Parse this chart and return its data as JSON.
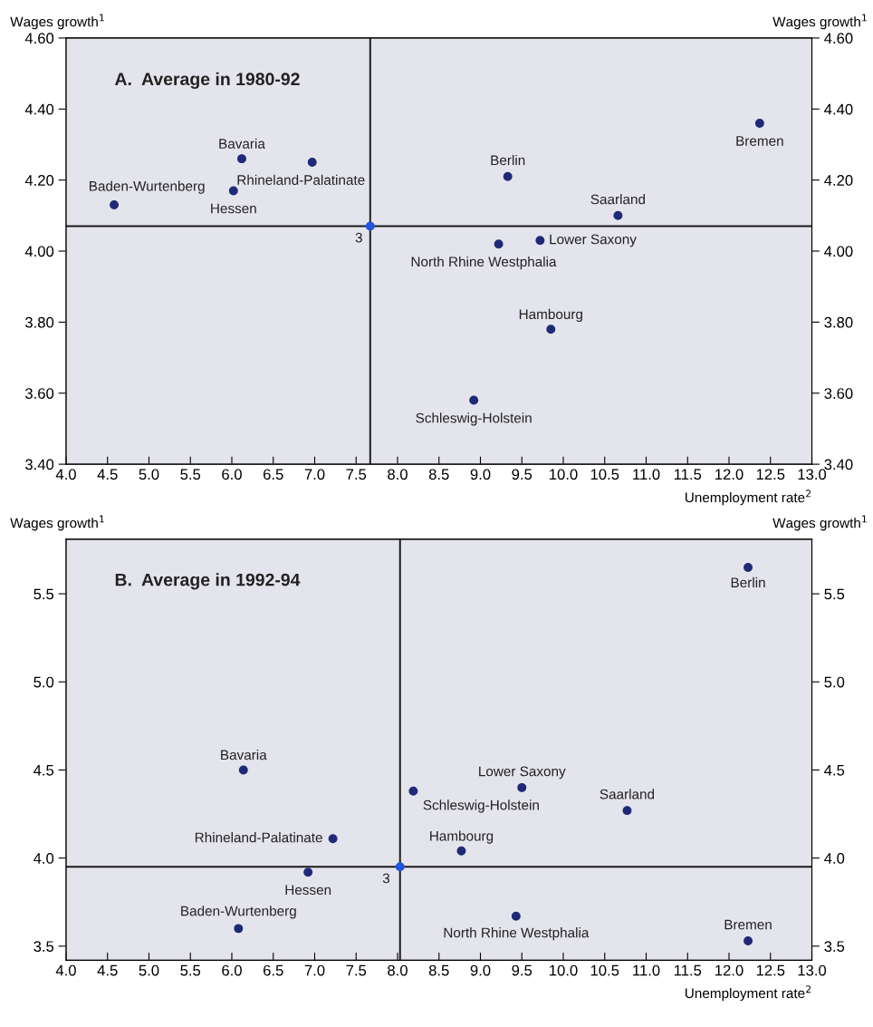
{
  "chart_data": [
    {
      "type": "scatter",
      "title": "A.  Average in 1980-92",
      "xlabel": "Unemployment rate$^{2}$",
      "ylabel": "Wages growth$^{1}$",
      "y2label": "Wages growth$^{1}$",
      "series": [
        {
          "color": "#1e2a78",
          "x": [
            4.58,
            6.12,
            6.97,
            6.02,
            9.33,
            12.37,
            10.66,
            9.72,
            9.22,
            9.85,
            8.92
          ],
          "values": [
            4.13,
            4.26,
            4.25,
            4.17,
            4.21,
            4.36,
            4.1,
            4.03,
            4.02,
            3.78,
            3.58
          ]
        },
        {
          "color": "#2255dd",
          "x": [
            7.67
          ],
          "values": [
            4.07
          ]
        }
      ],
      "ref_lines": [
        {
          "axis": "x",
          "value": 7.67,
          "color": "#1a1a1a"
        },
        {
          "axis": "y",
          "value": 4.07,
          "color": "#1a1a1a"
        }
      ],
      "annotations": [
        {
          "text": "Baden-Wurtenberg",
          "x": 4.58,
          "y": 4.13
        },
        {
          "text": "Bavaria",
          "x": 6.12,
          "y": 4.26
        },
        {
          "text": "Rhineland-Palatinate",
          "x": 6.97,
          "y": 4.25
        },
        {
          "text": "Hessen",
          "x": 6.02,
          "y": 4.17
        },
        {
          "text": "Berlin",
          "x": 9.33,
          "y": 4.21
        },
        {
          "text": "Bremen",
          "x": 12.37,
          "y": 4.36
        },
        {
          "text": "Saarland",
          "x": 10.66,
          "y": 4.1
        },
        {
          "text": "Lower Saxony",
          "x": 9.72,
          "y": 4.03
        },
        {
          "text": "North Rhine Westphalia",
          "x": 9.22,
          "y": 4.02
        },
        {
          "text": "Hambourg",
          "x": 9.85,
          "y": 3.78
        },
        {
          "text": "Schleswig-Holstein",
          "x": 8.92,
          "y": 3.58
        },
        {
          "text": "3",
          "x": 7.67,
          "y": 4.07
        }
      ],
      "xlim": [
        4,
        13
      ],
      "xticks": [
        {
          "value": 4,
          "label": "4.0"
        },
        {
          "value": 4.5,
          "label": "4.5"
        },
        {
          "value": 5,
          "label": "5.0"
        },
        {
          "value": 5.5,
          "label": "5.5"
        },
        {
          "value": 6,
          "label": "6.0"
        },
        {
          "value": 6.5,
          "label": "6.5"
        },
        {
          "value": 7,
          "label": "7.0"
        },
        {
          "value": 7.5,
          "label": "7.5"
        },
        {
          "value": 8,
          "label": "8.0"
        },
        {
          "value": 8.5,
          "label": "8.5"
        },
        {
          "value": 9,
          "label": "9.0"
        },
        {
          "value": 9.5,
          "label": "9.5"
        },
        {
          "value": 10,
          "label": "10.0"
        },
        {
          "value": 10.5,
          "label": "10.5"
        },
        {
          "value": 11,
          "label": "11.0"
        },
        {
          "value": 11.5,
          "label": "11.5"
        },
        {
          "value": 12,
          "label": "12.0"
        },
        {
          "value": 12.5,
          "label": "12.5"
        },
        {
          "value": 13,
          "label": "13.0"
        }
      ],
      "ylim": [
        3.4,
        4.6
      ],
      "yticks": [
        {
          "value": 3.4,
          "label": "3.40"
        },
        {
          "value": 3.6,
          "label": "3.60"
        },
        {
          "value": 3.8,
          "label": "3.80"
        },
        {
          "value": 4.0,
          "label": "4.00"
        },
        {
          "value": 4.2,
          "label": "4.20"
        },
        {
          "value": 4.4,
          "label": "4.40"
        },
        {
          "value": 4.6,
          "label": "4.60"
        }
      ],
      "y2lim": [
        3.4,
        4.6
      ],
      "y2ticks": [
        {
          "value": 3.4,
          "label": "3.40"
        },
        {
          "value": 3.6,
          "label": "3.60"
        },
        {
          "value": 3.8,
          "label": "3.80"
        },
        {
          "value": 4.0,
          "label": "4.00"
        },
        {
          "value": 4.2,
          "label": "4.20"
        },
        {
          "value": 4.4,
          "label": "4.40"
        },
        {
          "value": 4.6,
          "label": "4.60"
        }
      ],
      "grid": false,
      "marker": "circle"
    },
    {
      "type": "scatter",
      "title": "B.  Average in 1992-94",
      "xlabel": "Unemployment rate$^{2}$",
      "ylabel": "Wages growth$^{1}$",
      "y2label": "Wages growth$^{1}$",
      "series": [
        {
          "color": "#1e2a78",
          "x": [
            6.14,
            8.19,
            9.5,
            10.77,
            7.22,
            8.77,
            6.92,
            6.08,
            9.43,
            12.23,
            12.23
          ],
          "values": [
            4.5,
            4.38,
            4.4,
            4.27,
            4.11,
            4.04,
            3.92,
            3.6,
            3.67,
            3.53,
            5.65
          ]
        },
        {
          "color": "#2255dd",
          "x": [
            8.03
          ],
          "values": [
            3.95
          ]
        }
      ],
      "ref_lines": [
        {
          "axis": "x",
          "value": 8.03,
          "color": "#1a1a1a"
        },
        {
          "axis": "y",
          "value": 3.95,
          "color": "#1a1a1a"
        }
      ],
      "annotations": [
        {
          "text": "Bavaria",
          "x": 6.14,
          "y": 4.5
        },
        {
          "text": "Schleswig-Holstein",
          "x": 8.19,
          "y": 4.38
        },
        {
          "text": "Lower Saxony",
          "x": 9.5,
          "y": 4.4
        },
        {
          "text": "Saarland",
          "x": 10.77,
          "y": 4.27
        },
        {
          "text": "Rhineland-Palatinate",
          "x": 7.22,
          "y": 4.11
        },
        {
          "text": "Hambourg",
          "x": 8.77,
          "y": 4.04
        },
        {
          "text": "Hessen",
          "x": 6.92,
          "y": 3.92
        },
        {
          "text": "Baden-Wurtenberg",
          "x": 6.08,
          "y": 3.6
        },
        {
          "text": "North Rhine Westphalia",
          "x": 9.43,
          "y": 3.67
        },
        {
          "text": "Bremen",
          "x": 12.23,
          "y": 3.53
        },
        {
          "text": "Berlin",
          "x": 12.23,
          "y": 5.65
        },
        {
          "text": "3",
          "x": 8.03,
          "y": 3.95
        }
      ],
      "xlim": [
        4,
        13
      ],
      "xticks": [
        {
          "value": 4,
          "label": "4.0"
        },
        {
          "value": 4.5,
          "label": "4.5"
        },
        {
          "value": 5,
          "label": "5.0"
        },
        {
          "value": 5.5,
          "label": "5.5"
        },
        {
          "value": 6,
          "label": "6.0"
        },
        {
          "value": 6.5,
          "label": "6.5"
        },
        {
          "value": 7,
          "label": "7.0"
        },
        {
          "value": 7.5,
          "label": "7.5"
        },
        {
          "value": 8,
          "label": "8.0"
        },
        {
          "value": 8.5,
          "label": "8.5"
        },
        {
          "value": 9,
          "label": "9.0"
        },
        {
          "value": 9.5,
          "label": "9.5"
        },
        {
          "value": 10,
          "label": "10.0"
        },
        {
          "value": 10.5,
          "label": "10.5"
        },
        {
          "value": 11,
          "label": "11.0"
        },
        {
          "value": 11.5,
          "label": "11.5"
        },
        {
          "value": 12,
          "label": "12.0"
        },
        {
          "value": 12.5,
          "label": "12.5"
        },
        {
          "value": 13,
          "label": "13.0"
        }
      ],
      "ylim": [
        3.42,
        5.81
      ],
      "yticks": [
        {
          "value": 3.5,
          "label": "3.5"
        },
        {
          "value": 4.0,
          "label": "4.0"
        },
        {
          "value": 4.5,
          "label": "4.5"
        },
        {
          "value": 5.0,
          "label": "5.0"
        },
        {
          "value": 5.5,
          "label": "5.5"
        }
      ],
      "y2lim": [
        3.42,
        5.81
      ],
      "y2ticks": [
        {
          "value": 3.5,
          "label": "3.5"
        },
        {
          "value": 4.0,
          "label": "4.0"
        },
        {
          "value": 4.5,
          "label": "4.5"
        },
        {
          "value": 5.0,
          "label": "5.0"
        },
        {
          "value": 5.5,
          "label": "5.5"
        }
      ],
      "grid": false,
      "marker": "circle"
    }
  ]
}
